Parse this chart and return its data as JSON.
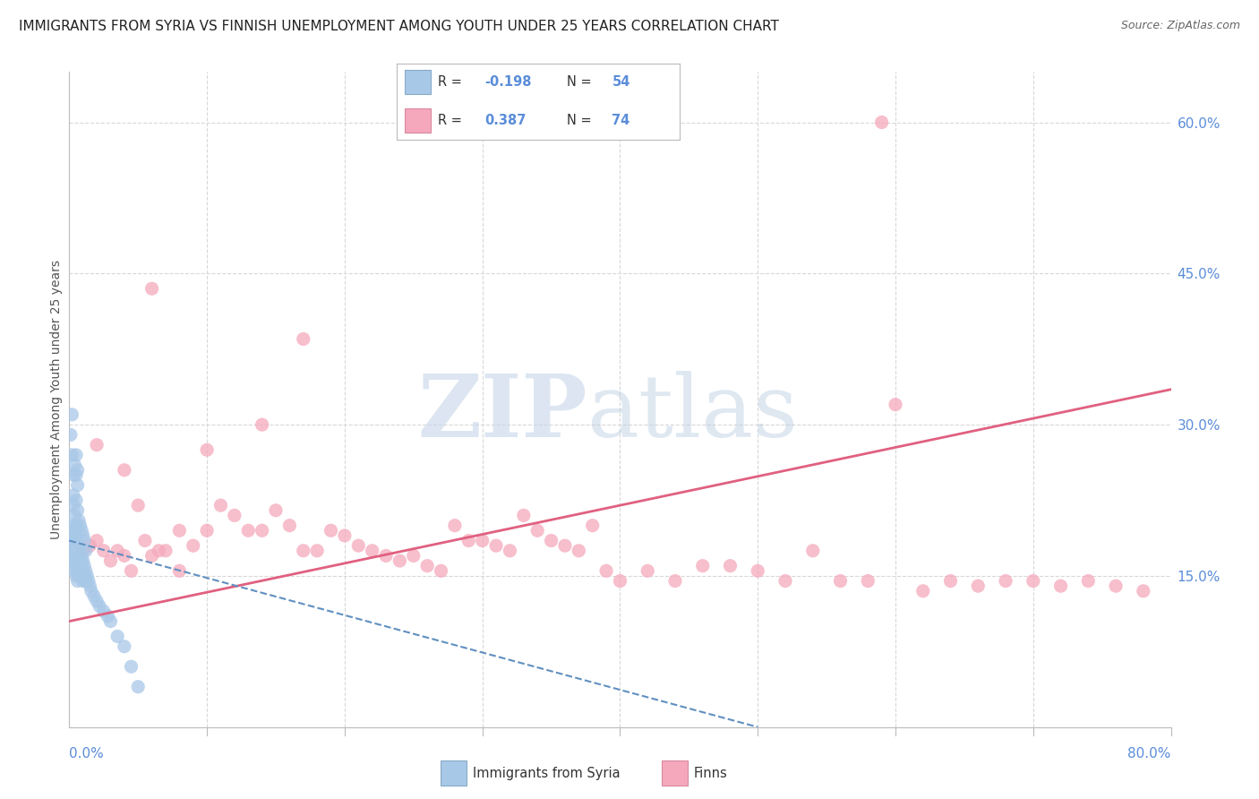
{
  "title": "IMMIGRANTS FROM SYRIA VS FINNISH UNEMPLOYMENT AMONG YOUTH UNDER 25 YEARS CORRELATION CHART",
  "source": "Source: ZipAtlas.com",
  "ylabel": "Unemployment Among Youth under 25 years",
  "legend_r_syria": "-0.198",
  "legend_n_syria": "54",
  "legend_r_finns": "0.387",
  "legend_n_finns": "74",
  "color_syria": "#a8c8e8",
  "color_finns": "#f5a8bc",
  "color_syria_line": "#6090c0",
  "color_finns_line": "#e06080",
  "color_axis_labels": "#5b8dd9",
  "syria_x": [
    0.001,
    0.001,
    0.002,
    0.002,
    0.002,
    0.003,
    0.003,
    0.003,
    0.003,
    0.004,
    0.004,
    0.004,
    0.004,
    0.005,
    0.005,
    0.005,
    0.005,
    0.005,
    0.006,
    0.006,
    0.006,
    0.006,
    0.006,
    0.007,
    0.007,
    0.007,
    0.007,
    0.008,
    0.008,
    0.008,
    0.009,
    0.009,
    0.009,
    0.01,
    0.01,
    0.01,
    0.011,
    0.011,
    0.012,
    0.012,
    0.013,
    0.014,
    0.015,
    0.016,
    0.018,
    0.02,
    0.022,
    0.025,
    0.028,
    0.03,
    0.035,
    0.04,
    0.045,
    0.05
  ],
  "syria_y": [
    0.185,
    0.175,
    0.195,
    0.18,
    0.165,
    0.2,
    0.19,
    0.175,
    0.16,
    0.195,
    0.18,
    0.17,
    0.155,
    0.2,
    0.19,
    0.175,
    0.165,
    0.15,
    0.185,
    0.175,
    0.165,
    0.155,
    0.145,
    0.18,
    0.17,
    0.16,
    0.15,
    0.175,
    0.165,
    0.155,
    0.17,
    0.16,
    0.15,
    0.165,
    0.155,
    0.145,
    0.16,
    0.15,
    0.155,
    0.145,
    0.15,
    0.145,
    0.14,
    0.135,
    0.13,
    0.125,
    0.12,
    0.115,
    0.11,
    0.105,
    0.09,
    0.08,
    0.06,
    0.04
  ],
  "syria_extra_x": [
    0.001,
    0.002,
    0.003,
    0.003,
    0.002,
    0.004,
    0.005,
    0.005,
    0.006,
    0.006,
    0.003,
    0.004,
    0.005,
    0.006,
    0.007,
    0.008,
    0.009,
    0.01,
    0.011,
    0.012
  ],
  "syria_extra_y": [
    0.29,
    0.27,
    0.25,
    0.23,
    0.31,
    0.26,
    0.27,
    0.25,
    0.24,
    0.255,
    0.22,
    0.21,
    0.225,
    0.215,
    0.205,
    0.2,
    0.195,
    0.19,
    0.185,
    0.175
  ],
  "finns_x": [
    0.01,
    0.015,
    0.02,
    0.025,
    0.03,
    0.035,
    0.04,
    0.045,
    0.05,
    0.055,
    0.06,
    0.065,
    0.07,
    0.08,
    0.09,
    0.1,
    0.11,
    0.12,
    0.13,
    0.14,
    0.15,
    0.16,
    0.17,
    0.18,
    0.19,
    0.2,
    0.21,
    0.22,
    0.23,
    0.24,
    0.25,
    0.26,
    0.27,
    0.28,
    0.29,
    0.3,
    0.31,
    0.32,
    0.33,
    0.34,
    0.35,
    0.36,
    0.37,
    0.38,
    0.39,
    0.4,
    0.42,
    0.44,
    0.46,
    0.48,
    0.5,
    0.52,
    0.54,
    0.56,
    0.58,
    0.6,
    0.62,
    0.64,
    0.66,
    0.68,
    0.7,
    0.72,
    0.74,
    0.76,
    0.78,
    0.02,
    0.04,
    0.06,
    0.08,
    0.1,
    0.14,
    0.17,
    0.59
  ],
  "finns_y": [
    0.175,
    0.18,
    0.185,
    0.175,
    0.165,
    0.175,
    0.17,
    0.155,
    0.22,
    0.185,
    0.17,
    0.175,
    0.175,
    0.195,
    0.18,
    0.195,
    0.22,
    0.21,
    0.195,
    0.195,
    0.215,
    0.2,
    0.175,
    0.175,
    0.195,
    0.19,
    0.18,
    0.175,
    0.17,
    0.165,
    0.17,
    0.16,
    0.155,
    0.2,
    0.185,
    0.185,
    0.18,
    0.175,
    0.21,
    0.195,
    0.185,
    0.18,
    0.175,
    0.2,
    0.155,
    0.145,
    0.155,
    0.145,
    0.16,
    0.16,
    0.155,
    0.145,
    0.175,
    0.145,
    0.145,
    0.32,
    0.135,
    0.145,
    0.14,
    0.145,
    0.145,
    0.14,
    0.145,
    0.14,
    0.135,
    0.28,
    0.255,
    0.435,
    0.155,
    0.275,
    0.3,
    0.385,
    0.6
  ],
  "xlim": [
    0.0,
    0.8
  ],
  "ylim": [
    0.0,
    0.65
  ],
  "background_color": "#ffffff",
  "grid_color": "#d8d8d8",
  "finns_line_x0": 0.0,
  "finns_line_x1": 0.8,
  "finns_line_y0": 0.105,
  "finns_line_y1": 0.335,
  "syria_line_x0": 0.0,
  "syria_line_x1": 0.5,
  "syria_line_y0": 0.185,
  "syria_line_y1": 0.0
}
